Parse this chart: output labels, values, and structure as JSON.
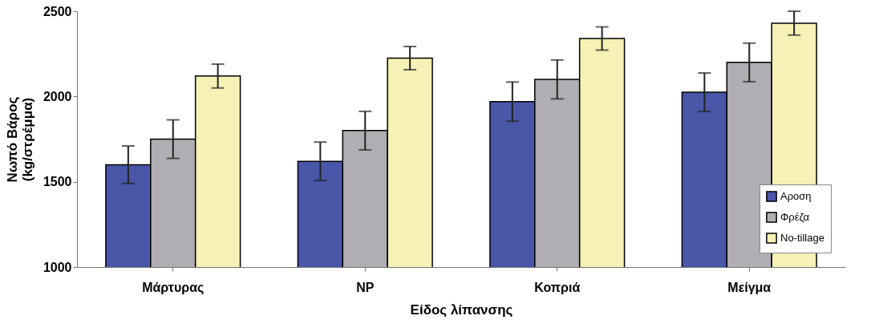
{
  "chart_data": {
    "type": "bar",
    "categories": [
      "Μάρτυρας",
      "NP",
      "Κοπριά",
      "Μείγμα"
    ],
    "series": [
      {
        "name": "Αροση",
        "color": "#4a56a8",
        "values": [
          1600,
          1620,
          1970,
          2025
        ],
        "errors": [
          110,
          113,
          115,
          113
        ]
      },
      {
        "name": "Φρέζα",
        "color": "#b0aeb2",
        "values": [
          1750,
          1800,
          2100,
          2200
        ],
        "errors": [
          113,
          113,
          114,
          113
        ]
      },
      {
        "name": "No-tillage",
        "color": "#f6f2b6",
        "values": [
          2120,
          2225,
          2340,
          2430
        ],
        "errors": [
          70,
          68,
          68,
          70
        ]
      }
    ],
    "xlabel": "Είδος λίπανσης",
    "ylabel": "Νωπό Βάρος\n(kg/στρέμμα)",
    "ylim": [
      1000,
      2500
    ],
    "yticks": [
      1000,
      1500,
      2000,
      2500
    ],
    "grid": false,
    "legend": "bottom right"
  }
}
